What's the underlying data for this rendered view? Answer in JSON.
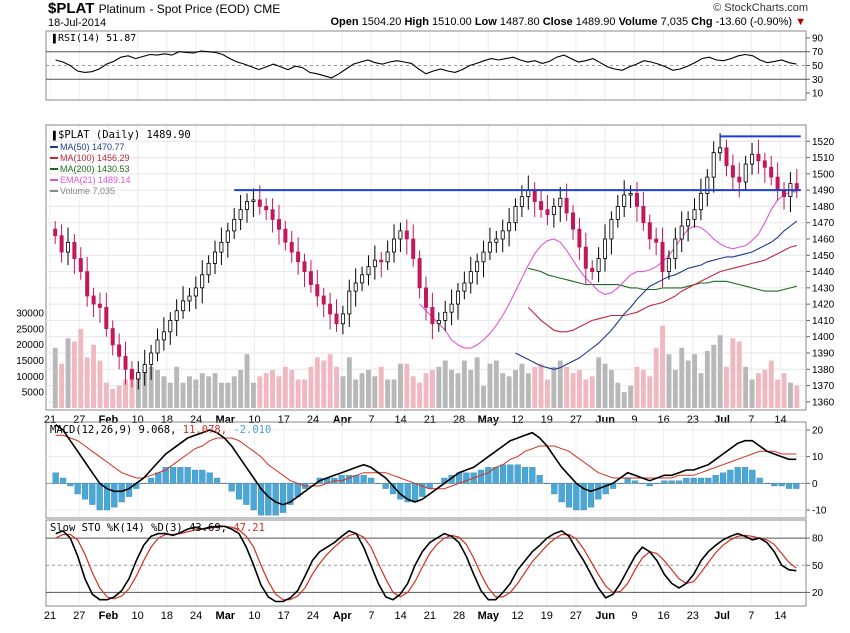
{
  "header": {
    "symbol": "$PLAT",
    "name": "Platinum",
    "subtitle": "- Spot Price (EOD)",
    "exchange": "CME",
    "date": "18-Jul-2014",
    "credit": "© StockCharts.com",
    "open_label": "Open",
    "open": "1504.20",
    "high_label": "High",
    "high": "1510.00",
    "low_label": "Low",
    "low": "1487.80",
    "close_label": "Close",
    "close": "1489.90",
    "volume_label": "Volume",
    "volume": "7,035",
    "chg_label": "Chg",
    "chg": "-13.60 (-0.90%)",
    "chg_marker": "▼"
  },
  "colors": {
    "up_candle": "#000000",
    "down_candle": "#c2185b",
    "ma50": "#1f3a93",
    "ma100": "#c0283c",
    "ma200": "#1e6b1e",
    "ema21": "#e056d8",
    "volume_up": "#b8b8b8",
    "volume_down": "#f0b8c0",
    "resistance": "#1a3ed8",
    "macd": "#000000",
    "signal": "#d03020",
    "histogram": "#4aa7d6",
    "stoch_k": "#000000",
    "stoch_d": "#d03020",
    "rsi": "#000000"
  },
  "x_axis": {
    "ticks": [
      "21",
      "27",
      "Feb",
      "10",
      "18",
      "24",
      "Mar",
      "10",
      "17",
      "24",
      "Apr",
      "7",
      "14",
      "21",
      "28",
      "May",
      "12",
      "19",
      "27",
      "Jun",
      "9",
      "16",
      "23",
      "Jul",
      "7",
      "14"
    ],
    "bold_ticks": [
      "Feb",
      "Mar",
      "Apr",
      "May",
      "Jun",
      "Jul"
    ]
  },
  "chart_data": [
    {
      "type": "line",
      "panel": "rsi",
      "title": "RSI(14) 51.87",
      "ylim": [
        0,
        100
      ],
      "y_ticks": [
        10,
        30,
        50,
        70,
        90
      ],
      "reference_lines": [
        30,
        50,
        70
      ],
      "series": [
        {
          "name": "RSI(14)",
          "values": [
            58,
            55,
            50,
            42,
            40,
            41,
            45,
            52,
            56,
            62,
            64,
            60,
            63,
            66,
            65,
            67,
            65,
            70,
            69,
            68,
            71,
            70,
            69,
            66,
            60,
            55,
            52,
            48,
            44,
            48,
            52,
            48,
            44,
            49,
            47,
            40,
            38,
            35,
            32,
            38,
            45,
            52,
            55,
            58,
            54,
            52,
            55,
            57,
            55,
            53,
            45,
            38,
            42,
            45,
            42,
            40,
            44,
            50,
            53,
            57,
            60,
            58,
            60,
            62,
            58,
            55,
            57,
            53,
            56,
            62,
            65,
            60,
            55,
            57,
            60,
            54,
            48,
            45,
            43,
            48,
            52,
            57,
            55,
            52,
            48,
            43,
            45,
            49,
            54,
            60,
            62,
            58,
            57,
            60,
            64,
            66,
            64,
            58,
            54,
            56,
            58,
            54,
            52
          ]
        }
      ]
    },
    {
      "type": "candlestick",
      "panel": "price",
      "title": "$PLAT (Daily) 1489.90",
      "ylim": [
        1355,
        1530
      ],
      "y_ticks": [
        1360,
        1370,
        1380,
        1390,
        1400,
        1410,
        1420,
        1430,
        1440,
        1450,
        1460,
        1470,
        1480,
        1490,
        1500,
        1510,
        1520
      ],
      "legend": [
        {
          "label": "MA(50) 1470.77",
          "color": "#1f3a93"
        },
        {
          "label": "MA(100) 1456.29",
          "color": "#c0283c"
        },
        {
          "label": "MA(200) 1430.53",
          "color": "#1e6b1e"
        },
        {
          "label": "EMA(21) 1489.14",
          "color": "#e056d8"
        },
        {
          "label": "Volume 7,035",
          "color": "#888888"
        }
      ],
      "close": [
        1462,
        1452,
        1458,
        1448,
        1440,
        1425,
        1420,
        1418,
        1405,
        1395,
        1388,
        1380,
        1374,
        1378,
        1383,
        1390,
        1398,
        1403,
        1410,
        1416,
        1422,
        1425,
        1430,
        1438,
        1445,
        1452,
        1458,
        1465,
        1472,
        1478,
        1483,
        1484,
        1480,
        1478,
        1472,
        1466,
        1458,
        1452,
        1446,
        1440,
        1432,
        1425,
        1420,
        1414,
        1408,
        1414,
        1428,
        1433,
        1438,
        1443,
        1447,
        1446,
        1452,
        1460,
        1465,
        1460,
        1448,
        1430,
        1418,
        1408,
        1410,
        1415,
        1420,
        1428,
        1433,
        1440,
        1446,
        1452,
        1458,
        1460,
        1465,
        1470,
        1480,
        1486,
        1490,
        1483,
        1478,
        1475,
        1480,
        1485,
        1476,
        1466,
        1455,
        1442,
        1440,
        1448,
        1460,
        1472,
        1480,
        1487,
        1488,
        1480,
        1470,
        1460,
        1458,
        1440,
        1448,
        1460,
        1468,
        1472,
        1478,
        1488,
        1498,
        1513,
        1516,
        1505,
        1498,
        1495,
        1506,
        1512,
        1508,
        1504,
        1498,
        1490,
        1486,
        1494,
        1490
      ],
      "volume": [
        19000,
        14000,
        22000,
        21000,
        25000,
        16000,
        20000,
        15000,
        8000,
        6000,
        7000,
        9000,
        12000,
        11000,
        12000,
        13000,
        12000,
        10000,
        8000,
        13000,
        8000,
        10000,
        9000,
        11000,
        10000,
        11000,
        8000,
        8000,
        10000,
        12000,
        17000,
        8000,
        10000,
        11000,
        12000,
        10000,
        13000,
        12000,
        9000,
        9000,
        13000,
        16000,
        15000,
        17000,
        13000,
        10000,
        16000,
        9000,
        11000,
        12000,
        10000,
        13000,
        9000,
        9000,
        14000,
        14000,
        10000,
        8000,
        11000,
        12000,
        13000,
        15000,
        12000,
        11000,
        15000,
        12000,
        16000,
        7000,
        14000,
        15000,
        11000,
        10000,
        12000,
        14000,
        11000,
        13000,
        14000,
        9000,
        13000,
        15000,
        13000,
        11000,
        12000,
        9000,
        10000,
        16000,
        14000,
        12000,
        8000,
        5000,
        7000,
        13000,
        12000,
        10000,
        19000,
        26000,
        17000,
        12000,
        19000,
        15000,
        17000,
        11000,
        18000,
        20000,
        23000,
        13000,
        22000,
        21000,
        13000,
        9000,
        11000,
        12000,
        15000,
        9000,
        11000,
        8000,
        7035
      ],
      "ma50": [
        1390,
        1388,
        1386,
        1384,
        1382,
        1381,
        1380,
        1381,
        1383,
        1385,
        1387,
        1390,
        1393,
        1396,
        1400,
        1404,
        1409,
        1414,
        1418,
        1423,
        1427,
        1431,
        1433,
        1435,
        1437,
        1438,
        1440,
        1442,
        1443,
        1444,
        1446,
        1447,
        1448,
        1449,
        1449,
        1450,
        1451,
        1452,
        1454,
        1456,
        1458,
        1461,
        1465,
        1468,
        1471
      ],
      "ma100": [
        1418,
        1414,
        1410,
        1407,
        1404,
        1403,
        1403,
        1404,
        1406,
        1408,
        1410,
        1411,
        1412,
        1413,
        1413,
        1413,
        1414,
        1415,
        1417,
        1419,
        1420,
        1421,
        1423,
        1425,
        1428,
        1430,
        1432,
        1434,
        1436,
        1438,
        1440,
        1441,
        1442,
        1443,
        1444,
        1445,
        1446,
        1447,
        1449,
        1451,
        1453,
        1455,
        1456
      ],
      "ma200": [
        1442,
        1441,
        1440,
        1438,
        1437,
        1436,
        1435,
        1434,
        1433,
        1432,
        1432,
        1432,
        1432,
        1432,
        1432,
        1431,
        1430,
        1430,
        1429,
        1429,
        1429,
        1430,
        1430,
        1430,
        1430,
        1431,
        1432,
        1433,
        1433,
        1434,
        1434,
        1434,
        1433,
        1432,
        1431,
        1430,
        1429,
        1428,
        1428,
        1428,
        1429,
        1430,
        1431
      ],
      "ema21": [
        1420,
        1416,
        1412,
        1408,
        1404,
        1398,
        1395,
        1393,
        1393,
        1395,
        1398,
        1402,
        1407,
        1413,
        1420,
        1428,
        1436,
        1444,
        1451,
        1456,
        1459,
        1460,
        1458,
        1453,
        1447,
        1441,
        1436,
        1432,
        1428,
        1426,
        1427,
        1430,
        1434,
        1438,
        1440,
        1440,
        1441,
        1443,
        1446,
        1450,
        1455,
        1461,
        1466,
        1468,
        1467,
        1464,
        1460,
        1457,
        1455,
        1454,
        1455,
        1456,
        1459,
        1463,
        1470,
        1478,
        1484,
        1487,
        1489,
        1489
      ],
      "resistance_lines": [
        {
          "from_bar": 28,
          "to_bar": 116,
          "value": 1490
        },
        {
          "from_bar": 104,
          "to_bar": 116,
          "value": 1523
        }
      ]
    },
    {
      "type": "line",
      "panel": "macd",
      "title": "MACD(12,26,9)",
      "macd_value": "9.068",
      "signal_value": "11.078",
      "hist_value": "-2.010",
      "ylim": [
        -13,
        23
      ],
      "y_ticks": [
        -10,
        0,
        10,
        20
      ],
      "macd": [
        22,
        20,
        16,
        12,
        8,
        4,
        0,
        -2,
        -3,
        -3,
        -2,
        0,
        2,
        5,
        8,
        11,
        13,
        15,
        17,
        18,
        19,
        20,
        19,
        17,
        14,
        10,
        6,
        2,
        -2,
        -5,
        -7,
        -8,
        -7,
        -5,
        -3,
        -1,
        1,
        2,
        3,
        4,
        5,
        6,
        7,
        6,
        4,
        2,
        -1,
        -4,
        -6,
        -7,
        -6,
        -4,
        -2,
        0,
        2,
        4,
        5,
        6,
        8,
        10,
        12,
        14,
        16,
        17,
        18,
        19,
        17,
        14,
        10,
        6,
        3,
        0,
        -2,
        -3,
        -2,
        -1,
        0,
        2,
        4,
        3,
        2,
        1,
        2,
        3,
        3,
        4,
        5,
        5,
        6,
        7,
        9,
        11,
        13,
        15,
        16,
        16,
        14,
        12,
        11,
        10,
        9,
        9
      ],
      "signal": [
        18,
        18,
        17,
        16,
        14,
        12,
        10,
        8,
        6,
        4,
        3,
        2,
        2,
        3,
        4,
        5,
        7,
        9,
        11,
        13,
        14,
        16,
        17,
        17,
        17,
        16,
        14,
        12,
        10,
        7,
        5,
        3,
        1,
        0,
        -1,
        -1,
        -1,
        0,
        1,
        1,
        2,
        3,
        4,
        4,
        4,
        4,
        3,
        2,
        1,
        0,
        -1,
        -2,
        -2,
        -2,
        -1,
        0,
        1,
        2,
        3,
        4,
        6,
        7,
        9,
        10,
        12,
        13,
        14,
        14,
        14,
        13,
        12,
        10,
        8,
        6,
        4,
        3,
        2,
        2,
        2,
        2,
        2,
        2,
        2,
        2,
        2,
        3,
        3,
        3,
        4,
        5,
        6,
        7,
        8,
        9,
        10,
        11,
        12,
        12,
        12,
        11,
        11,
        11
      ]
    },
    {
      "type": "line",
      "panel": "stochastic",
      "title": "Slow STO %K(14) %D(3)",
      "k_value": "43.69",
      "d_value": "47.21",
      "ylim": [
        5,
        100
      ],
      "y_ticks": [
        20,
        50,
        80
      ],
      "reference_lines": [
        20,
        50,
        80
      ],
      "k": [
        85,
        88,
        80,
        60,
        35,
        18,
        12,
        12,
        15,
        22,
        35,
        55,
        72,
        82,
        85,
        85,
        83,
        86,
        90,
        92,
        90,
        92,
        93,
        93,
        90,
        85,
        70,
        50,
        28,
        15,
        10,
        10,
        14,
        22,
        38,
        55,
        65,
        70,
        75,
        82,
        88,
        85,
        70,
        50,
        30,
        15,
        12,
        18,
        30,
        50,
        65,
        75,
        80,
        85,
        82,
        75,
        60,
        40,
        22,
        12,
        12,
        20,
        30,
        45,
        55,
        65,
        72,
        80,
        85,
        88,
        82,
        68,
        55,
        40,
        25,
        14,
        18,
        30,
        45,
        60,
        70,
        65,
        55,
        40,
        30,
        25,
        30,
        40,
        55,
        65,
        72,
        78,
        82,
        85,
        82,
        78,
        80,
        75,
        65,
        50,
        45,
        44
      ],
      "d": [
        80,
        84,
        84,
        78,
        62,
        42,
        25,
        15,
        13,
        16,
        24,
        38,
        55,
        70,
        80,
        84,
        84,
        85,
        87,
        89,
        90,
        91,
        92,
        93,
        92,
        89,
        82,
        70,
        50,
        32,
        18,
        12,
        12,
        16,
        25,
        40,
        52,
        62,
        70,
        77,
        83,
        85,
        81,
        70,
        52,
        35,
        20,
        15,
        20,
        32,
        48,
        63,
        73,
        80,
        83,
        81,
        73,
        58,
        40,
        25,
        15,
        15,
        20,
        30,
        42,
        54,
        63,
        72,
        79,
        84,
        84,
        79,
        68,
        54,
        40,
        27,
        20,
        21,
        30,
        45,
        58,
        65,
        63,
        55,
        45,
        35,
        30,
        32,
        42,
        53,
        64,
        72,
        78,
        82,
        83,
        82,
        80,
        78,
        73,
        63,
        53,
        47
      ]
    }
  ]
}
